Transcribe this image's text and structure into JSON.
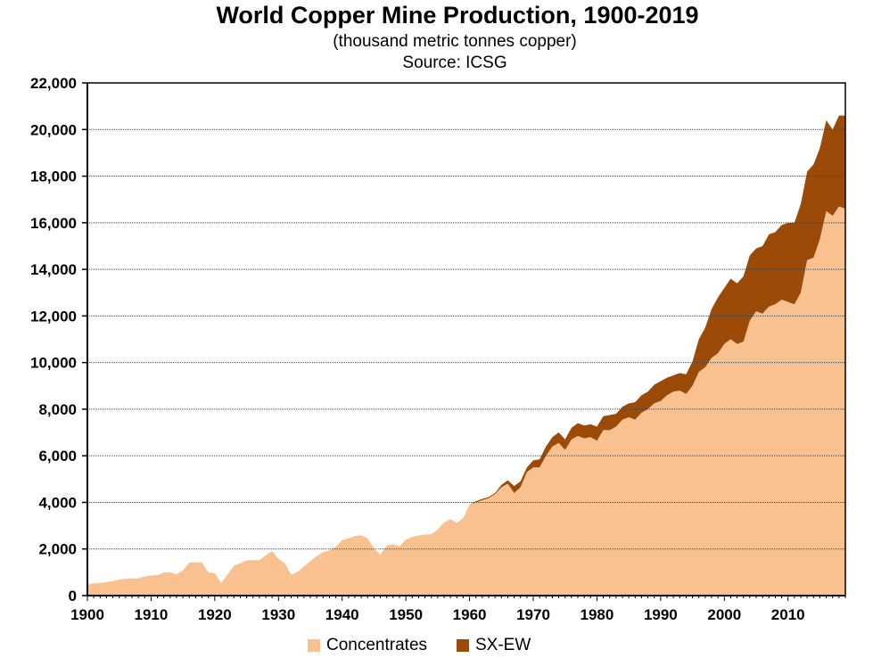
{
  "chart_data": {
    "type": "area",
    "stacked": true,
    "title": "World Copper Mine Production, 1900-2019",
    "subtitle": "(thousand metric tonnes copper)",
    "source": "Source: ICSG",
    "xlabel": "",
    "ylabel": "",
    "x_start": 1900,
    "x_end": 2019,
    "xlim": [
      1900,
      2019
    ],
    "ylim": [
      0,
      22000
    ],
    "grid": true,
    "legend_position": "bottom",
    "x_ticks": [
      "1900",
      "1910",
      "1920",
      "1930",
      "1940",
      "1950",
      "1960",
      "1970",
      "1980",
      "1990",
      "2000",
      "2010"
    ],
    "y_ticks": [
      "0",
      "2,000",
      "4,000",
      "6,000",
      "8,000",
      "10,000",
      "12,000",
      "14,000",
      "16,000",
      "18,000",
      "20,000",
      "22,000"
    ],
    "series": [
      {
        "name": "Concentrates",
        "color": "#F8C18F",
        "values": [
          495,
          520,
          540,
          580,
          620,
          690,
          720,
          730,
          740,
          820,
          860,
          880,
          990,
          1000,
          920,
          1080,
          1420,
          1430,
          1420,
          990,
          960,
          540,
          900,
          1280,
          1380,
          1510,
          1520,
          1520,
          1720,
          1910,
          1580,
          1380,
          900,
          1020,
          1250,
          1480,
          1700,
          1860,
          1940,
          2100,
          2380,
          2460,
          2560,
          2590,
          2450,
          2030,
          1750,
          2150,
          2210,
          2120,
          2400,
          2520,
          2580,
          2620,
          2630,
          2840,
          3140,
          3270,
          3120,
          3330,
          3900,
          4000,
          4100,
          4180,
          4350,
          4650,
          4800,
          4400,
          4650,
          5300,
          5500,
          5500,
          6000,
          6400,
          6550,
          6250,
          6700,
          6850,
          6750,
          6800,
          6650,
          7100,
          7100,
          7250,
          7550,
          7650,
          7550,
          7850,
          8000,
          8250,
          8350,
          8600,
          8750,
          8800,
          8650,
          9000,
          9600,
          9800,
          10200,
          10400,
          10800,
          11000,
          10800,
          10900,
          11800,
          12200,
          12100,
          12400,
          12500,
          12700,
          12600,
          12500,
          13000,
          14400,
          14500,
          15300,
          16500,
          16300,
          16700,
          16600
        ]
      },
      {
        "name": "SX-EW",
        "color": "#9C4A07",
        "values": [
          0,
          0,
          0,
          0,
          0,
          0,
          0,
          0,
          0,
          0,
          0,
          0,
          0,
          0,
          0,
          0,
          0,
          0,
          0,
          0,
          0,
          0,
          0,
          0,
          0,
          0,
          0,
          0,
          0,
          0,
          0,
          0,
          0,
          0,
          0,
          0,
          0,
          0,
          0,
          0,
          0,
          0,
          0,
          0,
          0,
          0,
          0,
          0,
          0,
          0,
          0,
          0,
          0,
          0,
          0,
          0,
          0,
          0,
          0,
          0,
          0,
          50,
          50,
          50,
          50,
          100,
          150,
          300,
          250,
          200,
          300,
          350,
          400,
          400,
          450,
          450,
          500,
          550,
          550,
          550,
          600,
          600,
          650,
          550,
          550,
          600,
          750,
          750,
          750,
          800,
          850,
          750,
          700,
          750,
          850,
          1050,
          1400,
          1700,
          2100,
          2400,
          2400,
          2600,
          2600,
          2800,
          2800,
          2700,
          2900,
          3100,
          3100,
          3200,
          3400,
          3500,
          3800,
          3800,
          4000,
          3900,
          3900,
          3700,
          3900,
          4000
        ]
      }
    ]
  }
}
